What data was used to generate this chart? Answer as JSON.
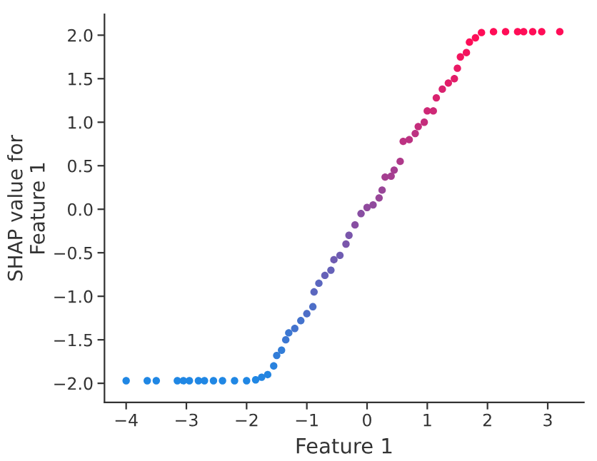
{
  "chart_data": {
    "type": "scatter",
    "xlabel": "Feature 1",
    "ylabel": "SHAP value for\nFeature 1",
    "x": [
      -4,
      -3.65,
      -3.5,
      -3.15,
      -3.05,
      -2.95,
      -2.8,
      -2.7,
      -2.55,
      -2.4,
      -2.2,
      -2.0,
      -1.85,
      -1.75,
      -1.65,
      -1.55,
      -1.5,
      -1.42,
      -1.35,
      -1.3,
      -1.2,
      -1.1,
      -1.0,
      -0.9,
      -0.88,
      -0.8,
      -0.7,
      -0.6,
      -0.55,
      -0.45,
      -0.35,
      -0.3,
      -0.2,
      -0.1,
      0,
      0.1,
      0.2,
      0.25,
      0.3,
      0.4,
      0.45,
      0.55,
      0.6,
      0.7,
      0.8,
      0.85,
      0.95,
      1.0,
      1.1,
      1.15,
      1.25,
      1.35,
      1.45,
      1.5,
      1.55,
      1.65,
      1.7,
      1.8,
      1.9,
      2.1,
      2.3,
      2.5,
      2.6,
      2.75,
      2.9,
      3.2
    ],
    "values": [
      -1.97,
      -1.97,
      -1.97,
      -1.97,
      -1.97,
      -1.97,
      -1.97,
      -1.97,
      -1.97,
      -1.97,
      -1.97,
      -1.97,
      -1.96,
      -1.93,
      -1.9,
      -1.8,
      -1.68,
      -1.62,
      -1.5,
      -1.42,
      -1.37,
      -1.28,
      -1.2,
      -1.12,
      -0.95,
      -0.85,
      -0.76,
      -0.7,
      -0.58,
      -0.53,
      -0.4,
      -0.3,
      -0.18,
      -0.05,
      0.02,
      0.05,
      0.13,
      0.22,
      0.37,
      0.38,
      0.45,
      0.55,
      0.78,
      0.8,
      0.87,
      0.95,
      1.0,
      1.13,
      1.13,
      1.28,
      1.38,
      1.45,
      1.5,
      1.62,
      1.75,
      1.8,
      1.92,
      1.97,
      2.03,
      2.04,
      2.04,
      2.04,
      2.04,
      2.04,
      2.04,
      2.04
    ],
    "colors": [
      "#2087e4",
      "#2087e4",
      "#2087e4",
      "#2087e4",
      "#2087e4",
      "#2087e4",
      "#2087e4",
      "#2087e4",
      "#2087e4",
      "#2087e4",
      "#2087e4",
      "#2087e4",
      "#2087e4",
      "#2485e1",
      "#2485e1",
      "#2982de",
      "#327dd8",
      "#327dd8",
      "#3c77d2",
      "#3c77d2",
      "#4473cd",
      "#4473cd",
      "#4d6ec7",
      "#4d6ec7",
      "#5b67bf",
      "#5b67bf",
      "#6561b8",
      "#6561b8",
      "#6f5cb2",
      "#6f5cb2",
      "#7a56ab",
      "#7a56ab",
      "#884ea2",
      "#884ea2",
      "#904a9d",
      "#904a9d",
      "#984698",
      "#984698",
      "#a53e90",
      "#a53e90",
      "#a53e90",
      "#ae398a",
      "#bc3282",
      "#bc3282",
      "#bc3282",
      "#c52d7c",
      "#c52d7c",
      "#ce2876",
      "#ce2876",
      "#d9226f",
      "#d9226f",
      "#e21d69",
      "#e21d69",
      "#e91965",
      "#f3145f",
      "#f3145f",
      "#fd0e58",
      "#fd0e58",
      "#ff0d57",
      "#ff0d57",
      "#ff0d57",
      "#ff0d57",
      "#ff0d57",
      "#ff0d57",
      "#ff0d57",
      "#ff0d57"
    ],
    "xlim": [
      -4.36,
      3.6
    ],
    "ylim": [
      -2.22,
      2.24
    ],
    "xticks": [
      {
        "value": -4,
        "label": "−4"
      },
      {
        "value": -3,
        "label": "−3"
      },
      {
        "value": -2,
        "label": "−2"
      },
      {
        "value": -1,
        "label": "−1"
      },
      0,
      1,
      2,
      3
    ],
    "yticks": [
      {
        "value": -2,
        "label": "−2.0"
      },
      {
        "value": -1.5,
        "label": "−1.5"
      },
      {
        "value": -1,
        "label": "−1.0"
      },
      {
        "value": -0.5,
        "label": "−0.5"
      },
      {
        "value": 0,
        "label": "0.0"
      },
      {
        "value": 0.5,
        "label": "0.5"
      },
      {
        "value": 1,
        "label": "1.0"
      },
      {
        "value": 1.5,
        "label": "1.5"
      },
      {
        "value": 2,
        "label": "2.0"
      }
    ],
    "marker": "circle",
    "grid": false,
    "legend": false
  }
}
